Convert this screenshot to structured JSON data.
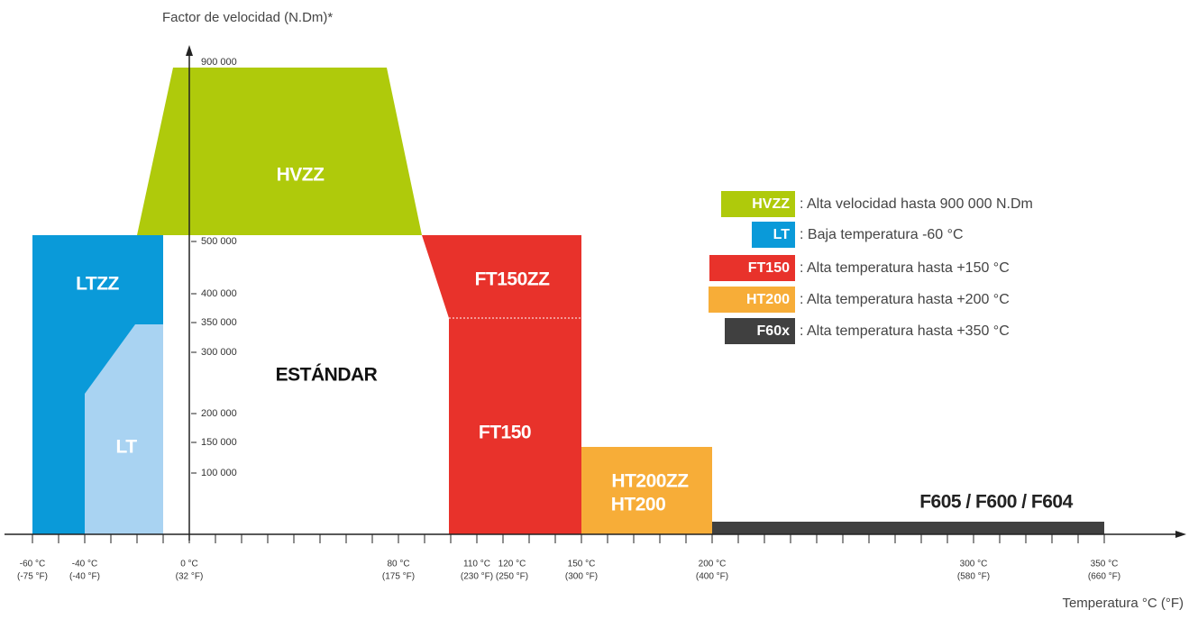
{
  "y_axis": {
    "title": "Factor de velocidad (N.Dm)*",
    "ticks": [
      "900 000",
      "500 000",
      "400 000",
      "350 000",
      "300 000",
      "200 000",
      "150 000",
      "100 000"
    ]
  },
  "x_axis": {
    "title": "Temperatura °C (°F)",
    "ticks": [
      {
        "celsius": "-60 °C",
        "fahrenheit": "(-75 °F)"
      },
      {
        "celsius": "-40 °C",
        "fahrenheit": "(-40 °F)"
      },
      {
        "celsius": "0 °C",
        "fahrenheit": "(32 °F)"
      },
      {
        "celsius": "80 °C",
        "fahrenheit": "(175 °F)"
      },
      {
        "celsius": "110 °C",
        "fahrenheit": "(230 °F)"
      },
      {
        "celsius": "120 °C",
        "fahrenheit": "(250 °F)"
      },
      {
        "celsius": "150 °C",
        "fahrenheit": "(300 °F)"
      },
      {
        "celsius": "200 °C",
        "fahrenheit": "(400 °F)"
      },
      {
        "celsius": "300 °C",
        "fahrenheit": "(580 °F)"
      },
      {
        "celsius": "350 °C",
        "fahrenheit": "(660 °F)"
      }
    ]
  },
  "regions": [
    "LTZZ",
    "LT",
    "HVZZ",
    "FT150ZZ",
    "FT150",
    "HT200ZZ",
    "HT200",
    "ESTÁNDAR",
    "F605 / F600 / F604"
  ],
  "legend": [
    {
      "code": "HVZZ",
      "description": ": Alta velocidad hasta 900 000 N.Dm"
    },
    {
      "code": "LT",
      "description": ": Baja temperatura -60 °C"
    },
    {
      "code": "FT150",
      "description": ": Alta temperatura hasta +150 °C"
    },
    {
      "code": "HT200",
      "description": ": Alta temperatura hasta +200 °C"
    },
    {
      "code": "F60x",
      "description": ": Alta temperatura hasta +350 °C"
    }
  ]
}
